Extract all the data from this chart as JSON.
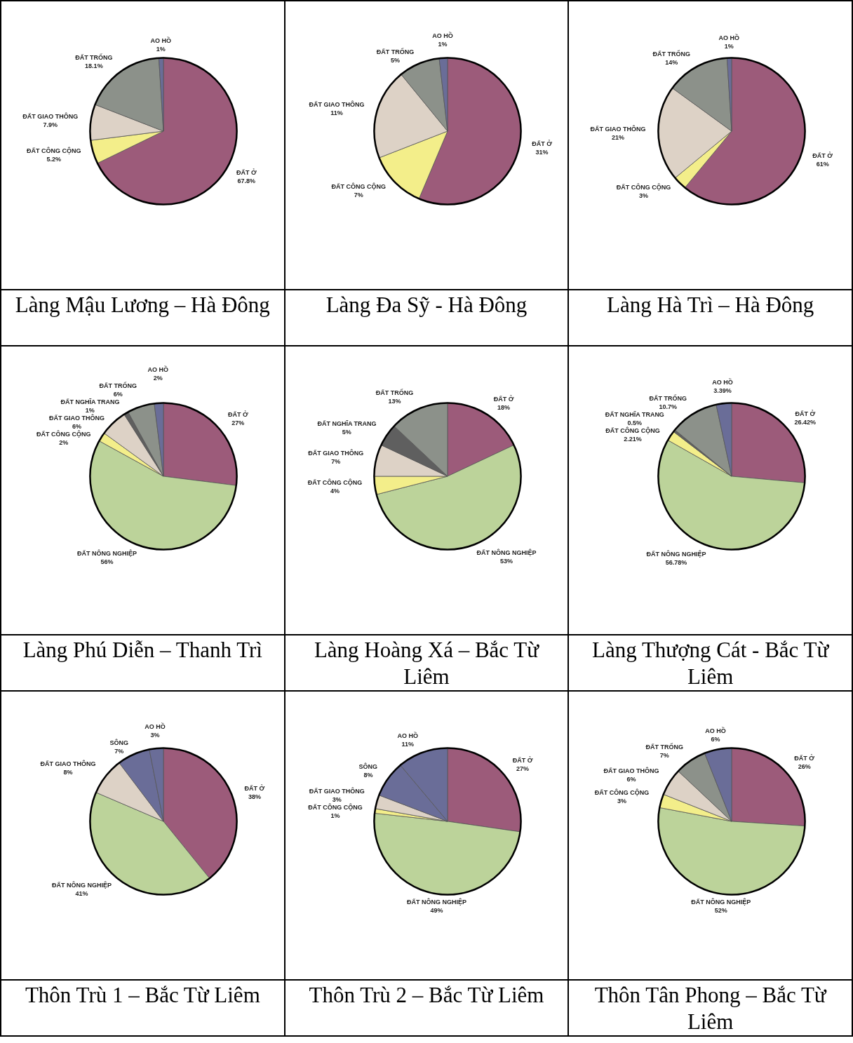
{
  "chart_data": [
    {
      "type": "pie",
      "title": "Làng Mậu Lương – Hà Đông",
      "categories": [
        "ĐẤT Ở",
        "ĐẤT CÔNG CỘNG",
        "ĐẤT GIAO THÔNG",
        "ĐẤT TRỐNG",
        "AO HỒ"
      ],
      "values": [
        67.8,
        5.2,
        7.9,
        18.1,
        1
      ],
      "value_labels": [
        "67.8%",
        "5.2%",
        "7.9%",
        "18.1%",
        "1%"
      ],
      "colors": [
        "#9c5b7a",
        "#f3ee8a",
        "#ddd2c6",
        "#8c918a",
        "#6a6d98"
      ]
    },
    {
      "type": "pie",
      "title": "Làng Đa Sỹ - Hà Đông",
      "categories": [
        "ĐẤT Ở",
        "ĐẤT CÔNG CỘNG",
        "ĐẤT GIAO THÔNG",
        "ĐẤT TRỐNG",
        "AO HỒ"
      ],
      "values": [
        31,
        7,
        11,
        5,
        1
      ],
      "value_labels": [
        "31%",
        "7%",
        "11%",
        "5%",
        "1%"
      ],
      "colors": [
        "#9c5b7a",
        "#f3ee8a",
        "#ddd2c6",
        "#8c918a",
        "#6a6d98"
      ]
    },
    {
      "type": "pie",
      "title": "Làng Hà Trì – Hà Đông",
      "categories": [
        "ĐẤT Ở",
        "ĐẤT CÔNG CỘNG",
        "ĐẤT GIAO THÔNG",
        "ĐẤT TRỐNG",
        "AO HỒ"
      ],
      "values": [
        61,
        3,
        21,
        14,
        1
      ],
      "value_labels": [
        "61%",
        "3%",
        "21%",
        "14%",
        "1%"
      ],
      "colors": [
        "#9c5b7a",
        "#f3ee8a",
        "#ddd2c6",
        "#8c918a",
        "#6a6d98"
      ]
    },
    {
      "type": "pie",
      "title": "Làng Phú Diễn – Thanh Trì",
      "categories": [
        "ĐẤT Ở",
        "ĐẤT NÔNG NGHIỆP",
        "ĐẤT CÔNG CỘNG",
        "ĐẤT GIAO THÔNG",
        "ĐẤT NGHĨA TRANG",
        "ĐẤT TRỐNG",
        "AO HỒ"
      ],
      "values": [
        27,
        56,
        2,
        6,
        1,
        6,
        2
      ],
      "value_labels": [
        "27%",
        "56%",
        "2%",
        "6%",
        "1%",
        "6%",
        "2%"
      ],
      "colors": [
        "#9c5b7a",
        "#bcd39a",
        "#f3ee8a",
        "#ddd2c6",
        "#5f5f5f",
        "#8c918a",
        "#6a6d98"
      ]
    },
    {
      "type": "pie",
      "title": "Làng Hoàng Xá – Bắc Từ Liêm",
      "categories": [
        "ĐẤT Ở",
        "ĐẤT NÔNG NGHIỆP",
        "ĐẤT CÔNG CỘNG",
        "ĐẤT GIAO THÔNG",
        "ĐẤT NGHĨA TRANG",
        "ĐẤT TRỐNG"
      ],
      "values": [
        18,
        53,
        4,
        7,
        5,
        13
      ],
      "value_labels": [
        "18%",
        "53%",
        "4%",
        "7%",
        "5%",
        "13%"
      ],
      "colors": [
        "#9c5b7a",
        "#bcd39a",
        "#f3ee8a",
        "#ddd2c6",
        "#5f5f5f",
        "#8c918a"
      ]
    },
    {
      "type": "pie",
      "title": "Làng Thượng Cát - Bắc Từ Liêm",
      "categories": [
        "ĐẤT Ở",
        "ĐẤT NÔNG NGHIỆP",
        "ĐẤT CÔNG CỘNG",
        "ĐẤT NGHĨA TRANG",
        "ĐẤT TRỐNG",
        "AO HỒ"
      ],
      "values": [
        26.42,
        56.78,
        2.21,
        0.5,
        10.7,
        3.39
      ],
      "value_labels": [
        "26.42%",
        "56.78%",
        "2.21%",
        "0.5%",
        "10.7%",
        "3.39%"
      ],
      "colors": [
        "#9c5b7a",
        "#bcd39a",
        "#f3ee8a",
        "#5f5f5f",
        "#8c918a",
        "#6a6d98"
      ]
    },
    {
      "type": "pie",
      "title": "Thôn Trù 1 – Bắc Từ Liêm",
      "categories": [
        "ĐẤT Ở",
        "ĐẤT NÔNG NGHIỆP",
        "ĐẤT GIAO THÔNG",
        "SÔNG",
        "AO HỒ"
      ],
      "values": [
        38,
        41,
        8,
        7,
        3
      ],
      "value_labels": [
        "38%",
        "41%",
        "8%",
        "7%",
        "3%"
      ],
      "colors": [
        "#9c5b7a",
        "#bcd39a",
        "#ddd2c6",
        "#6a6d98",
        "#6a6d98"
      ]
    },
    {
      "type": "pie",
      "title": "Thôn Trù 2 – Bắc Từ Liêm",
      "categories": [
        "ĐẤT Ở",
        "ĐẤT NÔNG NGHIỆP",
        "ĐẤT CÔNG CỘNG",
        "ĐẤT GIAO THÔNG",
        "SÔNG",
        "AO HỒ"
      ],
      "values": [
        27,
        49,
        1,
        3,
        8,
        11
      ],
      "value_labels": [
        "27%",
        "49%",
        "1%",
        "3%",
        "8%",
        "11%"
      ],
      "colors": [
        "#9c5b7a",
        "#bcd39a",
        "#f3ee8a",
        "#ddd2c6",
        "#6a6d98",
        "#6a6d98"
      ]
    },
    {
      "type": "pie",
      "title": "Thôn Tân Phong – Bắc Từ Liêm",
      "categories": [
        "ĐẤT Ở",
        "ĐẤT NÔNG NGHIỆP",
        "ĐẤT CÔNG CỘNG",
        "ĐẤT GIAO THÔNG",
        "ĐẤT TRỐNG",
        "AO HỒ"
      ],
      "values": [
        26,
        52,
        3,
        6,
        7,
        6
      ],
      "value_labels": [
        "26%",
        "52%",
        "3%",
        "6%",
        "7%",
        "6%"
      ],
      "colors": [
        "#9c5b7a",
        "#bcd39a",
        "#f3ee8a",
        "#ddd2c6",
        "#8c918a",
        "#6a6d98"
      ]
    }
  ]
}
